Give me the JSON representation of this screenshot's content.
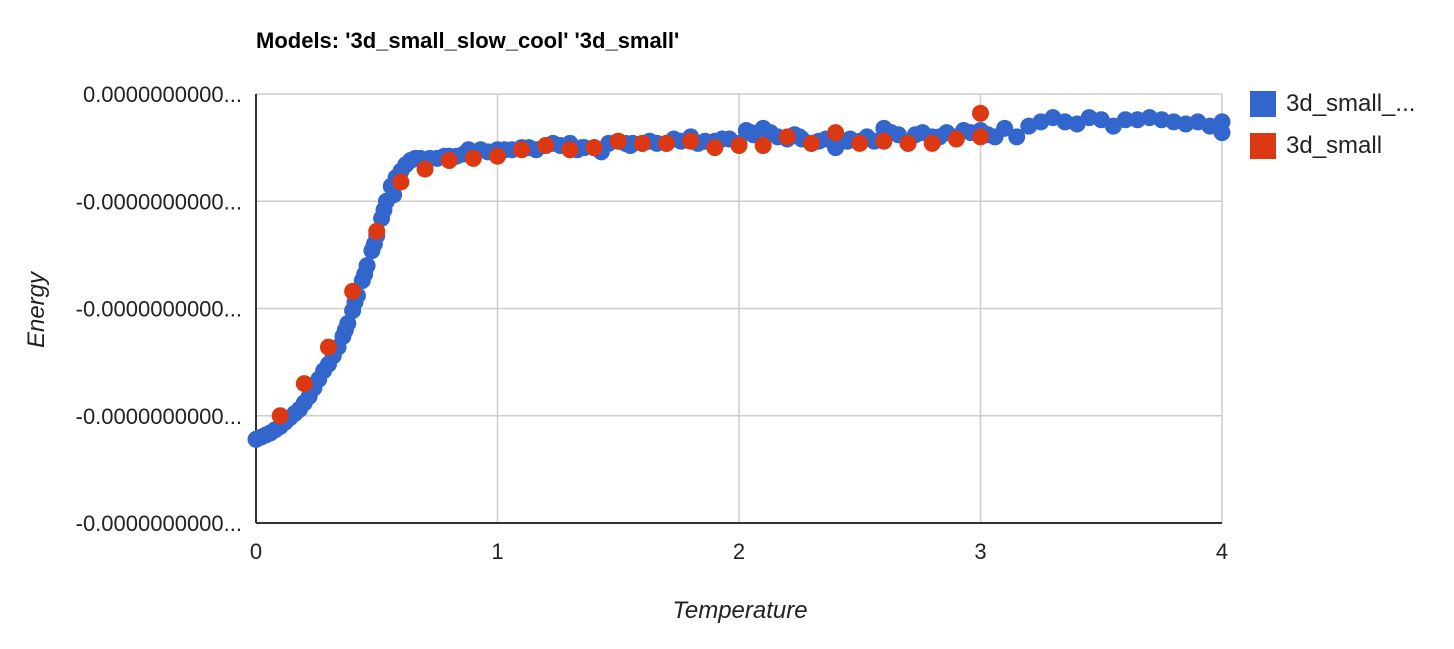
{
  "chart_data": {
    "type": "scatter",
    "title": "Models: '3d_small_slow_cool' '3d_small'",
    "xlabel": "Temperature",
    "ylabel": "Energy",
    "xlim": [
      0,
      4
    ],
    "x_ticks": [
      0,
      1,
      2,
      3,
      4
    ],
    "y_tick_labels": [
      "0.0000000000...",
      "-0.0000000000...",
      "-0.0000000000...",
      "-0.0000000000...",
      "-0.0000000000..."
    ],
    "ylim": [
      -2.0,
      0.0
    ],
    "grid": true,
    "legend_position": "right",
    "series": [
      {
        "name": "3d_small_...",
        "color": "#3366cc",
        "points": [
          [
            0.0,
            -1.61
          ],
          [
            0.02,
            -1.6
          ],
          [
            0.04,
            -1.59
          ],
          [
            0.06,
            -1.58
          ],
          [
            0.08,
            -1.565
          ],
          [
            0.1,
            -1.55
          ],
          [
            0.12,
            -1.53
          ],
          [
            0.14,
            -1.51
          ],
          [
            0.16,
            -1.49
          ],
          [
            0.18,
            -1.47
          ],
          [
            0.2,
            -1.44
          ],
          [
            0.22,
            -1.41
          ],
          [
            0.24,
            -1.37
          ],
          [
            0.26,
            -1.33
          ],
          [
            0.28,
            -1.29
          ],
          [
            0.3,
            -1.26
          ],
          [
            0.32,
            -1.22
          ],
          [
            0.34,
            -1.18
          ],
          [
            0.36,
            -1.13
          ],
          [
            0.38,
            -1.07
          ],
          [
            0.4,
            -1.01
          ],
          [
            0.42,
            -0.94
          ],
          [
            0.44,
            -0.87
          ],
          [
            0.46,
            -0.8
          ],
          [
            0.48,
            -0.73
          ],
          [
            0.5,
            -0.66
          ],
          [
            0.52,
            -0.58
          ],
          [
            0.54,
            -0.5
          ],
          [
            0.56,
            -0.43
          ],
          [
            0.58,
            -0.39
          ],
          [
            0.6,
            -0.36
          ],
          [
            0.62,
            -0.33
          ],
          [
            0.64,
            -0.31
          ],
          [
            0.66,
            -0.3
          ],
          [
            0.68,
            -0.3
          ],
          [
            0.7,
            -0.31
          ],
          [
            0.72,
            -0.3
          ],
          [
            0.75,
            -0.3
          ],
          [
            0.78,
            -0.29
          ],
          [
            0.8,
            -0.29
          ],
          [
            0.83,
            -0.29
          ],
          [
            0.86,
            -0.28
          ],
          [
            0.88,
            -0.26
          ],
          [
            0.9,
            -0.27
          ],
          [
            0.93,
            -0.26
          ],
          [
            0.96,
            -0.27
          ],
          [
            1.0,
            -0.26
          ],
          [
            1.03,
            -0.26
          ],
          [
            1.06,
            -0.26
          ],
          [
            1.1,
            -0.25
          ],
          [
            1.13,
            -0.25
          ],
          [
            1.16,
            -0.26
          ],
          [
            1.2,
            -0.24
          ],
          [
            1.23,
            -0.23
          ],
          [
            1.26,
            -0.24
          ],
          [
            1.3,
            -0.23
          ],
          [
            1.33,
            -0.26
          ],
          [
            1.36,
            -0.25
          ],
          [
            1.4,
            -0.25
          ],
          [
            1.43,
            -0.27
          ],
          [
            1.46,
            -0.23
          ],
          [
            1.5,
            -0.22
          ],
          [
            1.53,
            -0.23
          ],
          [
            1.56,
            -0.23
          ],
          [
            1.6,
            -0.23
          ],
          [
            1.63,
            -0.22
          ],
          [
            1.66,
            -0.23
          ],
          [
            1.7,
            -0.23
          ],
          [
            1.73,
            -0.21
          ],
          [
            1.76,
            -0.22
          ],
          [
            1.8,
            -0.2
          ],
          [
            1.83,
            -0.23
          ],
          [
            1.86,
            -0.22
          ],
          [
            1.9,
            -0.22
          ],
          [
            1.93,
            -0.21
          ],
          [
            1.96,
            -0.21
          ],
          [
            2.0,
            -0.23
          ],
          [
            2.03,
            -0.17
          ],
          [
            2.06,
            -0.19
          ],
          [
            2.1,
            -0.16
          ],
          [
            2.13,
            -0.18
          ],
          [
            2.16,
            -0.2
          ],
          [
            2.2,
            -0.21
          ],
          [
            2.23,
            -0.19
          ],
          [
            2.26,
            -0.21
          ],
          [
            2.3,
            -0.23
          ],
          [
            2.33,
            -0.22
          ],
          [
            2.36,
            -0.21
          ],
          [
            2.4,
            -0.25
          ],
          [
            2.43,
            -0.22
          ],
          [
            2.46,
            -0.21
          ],
          [
            2.5,
            -0.22
          ],
          [
            2.53,
            -0.2
          ],
          [
            2.56,
            -0.22
          ],
          [
            2.6,
            -0.16
          ],
          [
            2.63,
            -0.18
          ],
          [
            2.66,
            -0.19
          ],
          [
            2.7,
            -0.23
          ],
          [
            2.73,
            -0.19
          ],
          [
            2.76,
            -0.18
          ],
          [
            2.8,
            -0.2
          ],
          [
            2.83,
            -0.2
          ],
          [
            2.86,
            -0.18
          ],
          [
            2.9,
            -0.2
          ],
          [
            2.93,
            -0.17
          ],
          [
            2.96,
            -0.18
          ],
          [
            3.0,
            -0.17
          ],
          [
            3.03,
            -0.19
          ],
          [
            3.06,
            -0.2
          ],
          [
            3.1,
            -0.16
          ],
          [
            3.15,
            -0.2
          ],
          [
            3.2,
            -0.15
          ],
          [
            3.25,
            -0.13
          ],
          [
            3.3,
            -0.11
          ],
          [
            3.35,
            -0.13
          ],
          [
            3.4,
            -0.14
          ],
          [
            3.45,
            -0.11
          ],
          [
            3.5,
            -0.12
          ],
          [
            3.55,
            -0.15
          ],
          [
            3.6,
            -0.12
          ],
          [
            3.65,
            -0.12
          ],
          [
            3.7,
            -0.11
          ],
          [
            3.75,
            -0.12
          ],
          [
            3.8,
            -0.13
          ],
          [
            3.85,
            -0.14
          ],
          [
            3.9,
            -0.13
          ],
          [
            3.95,
            -0.15
          ],
          [
            4.0,
            -0.18
          ],
          [
            4.0,
            -0.13
          ],
          [
            1.35,
            -0.25
          ],
          [
            1.55,
            -0.24
          ],
          [
            2.05,
            -0.18
          ],
          [
            2.25,
            -0.2
          ],
          [
            2.45,
            -0.22
          ],
          [
            0.57,
            -0.47
          ],
          [
            0.53,
            -0.54
          ],
          [
            0.49,
            -0.7
          ],
          [
            0.45,
            -0.84
          ],
          [
            0.41,
            -0.97
          ],
          [
            0.37,
            -1.1
          ]
        ]
      },
      {
        "name": "3d_small",
        "color": "#dc3912",
        "points": [
          [
            0.1,
            -1.5
          ],
          [
            0.2,
            -1.35
          ],
          [
            0.3,
            -1.18
          ],
          [
            0.4,
            -0.92
          ],
          [
            0.5,
            -0.64
          ],
          [
            0.6,
            -0.41
          ],
          [
            0.7,
            -0.35
          ],
          [
            0.8,
            -0.31
          ],
          [
            0.9,
            -0.3
          ],
          [
            1.0,
            -0.29
          ],
          [
            1.1,
            -0.26
          ],
          [
            1.2,
            -0.24
          ],
          [
            1.3,
            -0.26
          ],
          [
            1.4,
            -0.25
          ],
          [
            1.5,
            -0.22
          ],
          [
            1.6,
            -0.23
          ],
          [
            1.7,
            -0.23
          ],
          [
            1.8,
            -0.22
          ],
          [
            1.9,
            -0.25
          ],
          [
            2.0,
            -0.24
          ],
          [
            2.1,
            -0.24
          ],
          [
            2.2,
            -0.2
          ],
          [
            2.3,
            -0.23
          ],
          [
            2.4,
            -0.18
          ],
          [
            2.5,
            -0.23
          ],
          [
            2.6,
            -0.22
          ],
          [
            2.7,
            -0.23
          ],
          [
            2.8,
            -0.23
          ],
          [
            2.9,
            -0.21
          ],
          [
            3.0,
            -0.2
          ],
          [
            3.0,
            -0.09
          ]
        ]
      }
    ]
  }
}
